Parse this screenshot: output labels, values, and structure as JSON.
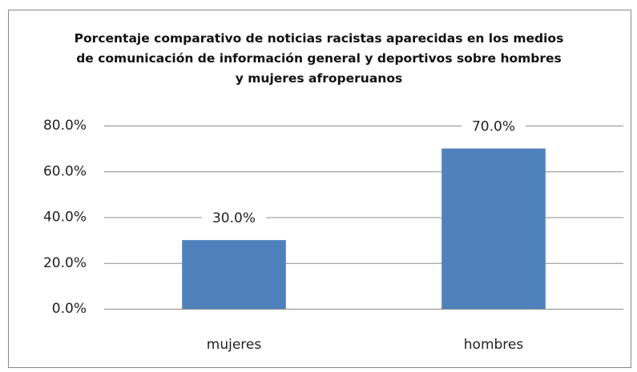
{
  "chart_data": {
    "type": "bar",
    "title": "Porcentaje comparativo de noticias racistas aparecidas en los medios de comunicación de información general y deportivos sobre hombres y mujeres afroperuanos",
    "categories": [
      "mujeres",
      "hombres"
    ],
    "values": [
      30,
      70
    ],
    "value_labels": [
      "30.0%",
      "70.0%"
    ],
    "color": "#4f81bd",
    "ylim": [
      0,
      80
    ],
    "yticks": [
      {
        "value": 0,
        "label": "0.0%"
      },
      {
        "value": 20,
        "label": "20.0%"
      },
      {
        "value": 40,
        "label": "40.0%"
      },
      {
        "value": 60,
        "label": "60.0%"
      },
      {
        "value": 80,
        "label": "80.0%"
      }
    ],
    "grid": true
  }
}
